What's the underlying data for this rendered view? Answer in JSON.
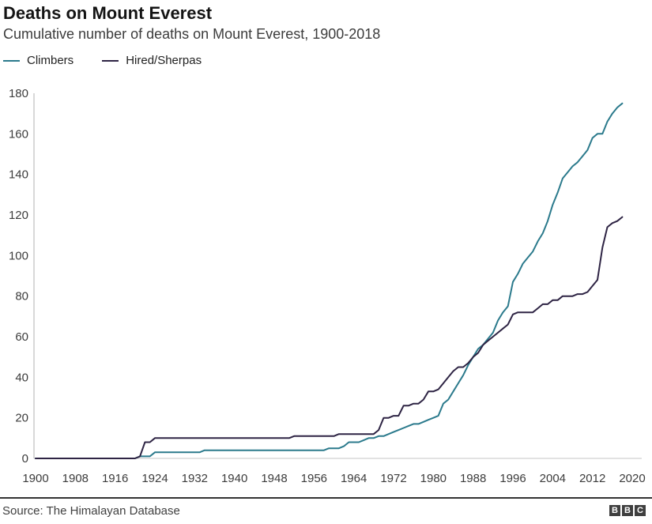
{
  "header": {
    "title": "Deaths on Mount Everest",
    "subtitle": "Cumulative number of deaths on Mount Everest, 1900-2018"
  },
  "legend": {
    "items": [
      {
        "label": "Climbers",
        "color": "#2b7a8c"
      },
      {
        "label": "Hired/Sherpas",
        "color": "#2e2444"
      }
    ]
  },
  "footer": {
    "source": "Source: The Himalayan Database",
    "logo_letters": [
      "B",
      "B",
      "C"
    ]
  },
  "chart_data": {
    "type": "line",
    "title": "Deaths on Mount Everest",
    "subtitle": "Cumulative number of deaths on Mount Everest, 1900-2018",
    "xlabel": "",
    "ylabel": "",
    "xlim": [
      1900,
      2020
    ],
    "ylim": [
      0,
      180
    ],
    "xticks": [
      1900,
      1908,
      1916,
      1924,
      1932,
      1940,
      1948,
      1956,
      1964,
      1972,
      1980,
      1988,
      1996,
      2004,
      2012,
      2020
    ],
    "yticks": [
      0,
      20,
      40,
      60,
      80,
      100,
      120,
      140,
      160,
      180
    ],
    "grid": false,
    "legend_position": "top-left",
    "x_start": 1900,
    "x_step": 1,
    "x_end": 2018,
    "series": [
      {
        "name": "Climbers",
        "color": "#2b7a8c",
        "values": [
          0,
          0,
          0,
          0,
          0,
          0,
          0,
          0,
          0,
          0,
          0,
          0,
          0,
          0,
          0,
          0,
          0,
          0,
          0,
          0,
          0,
          1,
          1,
          1,
          3,
          3,
          3,
          3,
          3,
          3,
          3,
          3,
          3,
          3,
          4,
          4,
          4,
          4,
          4,
          4,
          4,
          4,
          4,
          4,
          4,
          4,
          4,
          4,
          4,
          4,
          4,
          4,
          4,
          4,
          4,
          4,
          4,
          4,
          4,
          5,
          5,
          5,
          6,
          8,
          8,
          8,
          9,
          10,
          10,
          11,
          11,
          12,
          13,
          14,
          15,
          16,
          17,
          17,
          18,
          19,
          20,
          21,
          27,
          29,
          33,
          37,
          41,
          46,
          50,
          54,
          56,
          59,
          62,
          68,
          72,
          75,
          87,
          91,
          96,
          99,
          102,
          107,
          111,
          117,
          125,
          131,
          138,
          141,
          144,
          146,
          149,
          152,
          158,
          160,
          160,
          166,
          170,
          173,
          175
        ]
      },
      {
        "name": "Hired/Sherpas",
        "color": "#2e2444",
        "values": [
          0,
          0,
          0,
          0,
          0,
          0,
          0,
          0,
          0,
          0,
          0,
          0,
          0,
          0,
          0,
          0,
          0,
          0,
          0,
          0,
          0,
          1,
          8,
          8,
          10,
          10,
          10,
          10,
          10,
          10,
          10,
          10,
          10,
          10,
          10,
          10,
          10,
          10,
          10,
          10,
          10,
          10,
          10,
          10,
          10,
          10,
          10,
          10,
          10,
          10,
          10,
          10,
          11,
          11,
          11,
          11,
          11,
          11,
          11,
          11,
          11,
          12,
          12,
          12,
          12,
          12,
          12,
          12,
          12,
          14,
          20,
          20,
          21,
          21,
          26,
          26,
          27,
          27,
          29,
          33,
          33,
          34,
          37,
          40,
          43,
          45,
          45,
          47,
          50,
          52,
          56,
          58,
          60,
          62,
          64,
          66,
          71,
          72,
          72,
          72,
          72,
          74,
          76,
          76,
          78,
          78,
          80,
          80,
          80,
          81,
          81,
          82,
          85,
          88,
          104,
          114,
          116,
          117,
          119
        ]
      }
    ]
  }
}
